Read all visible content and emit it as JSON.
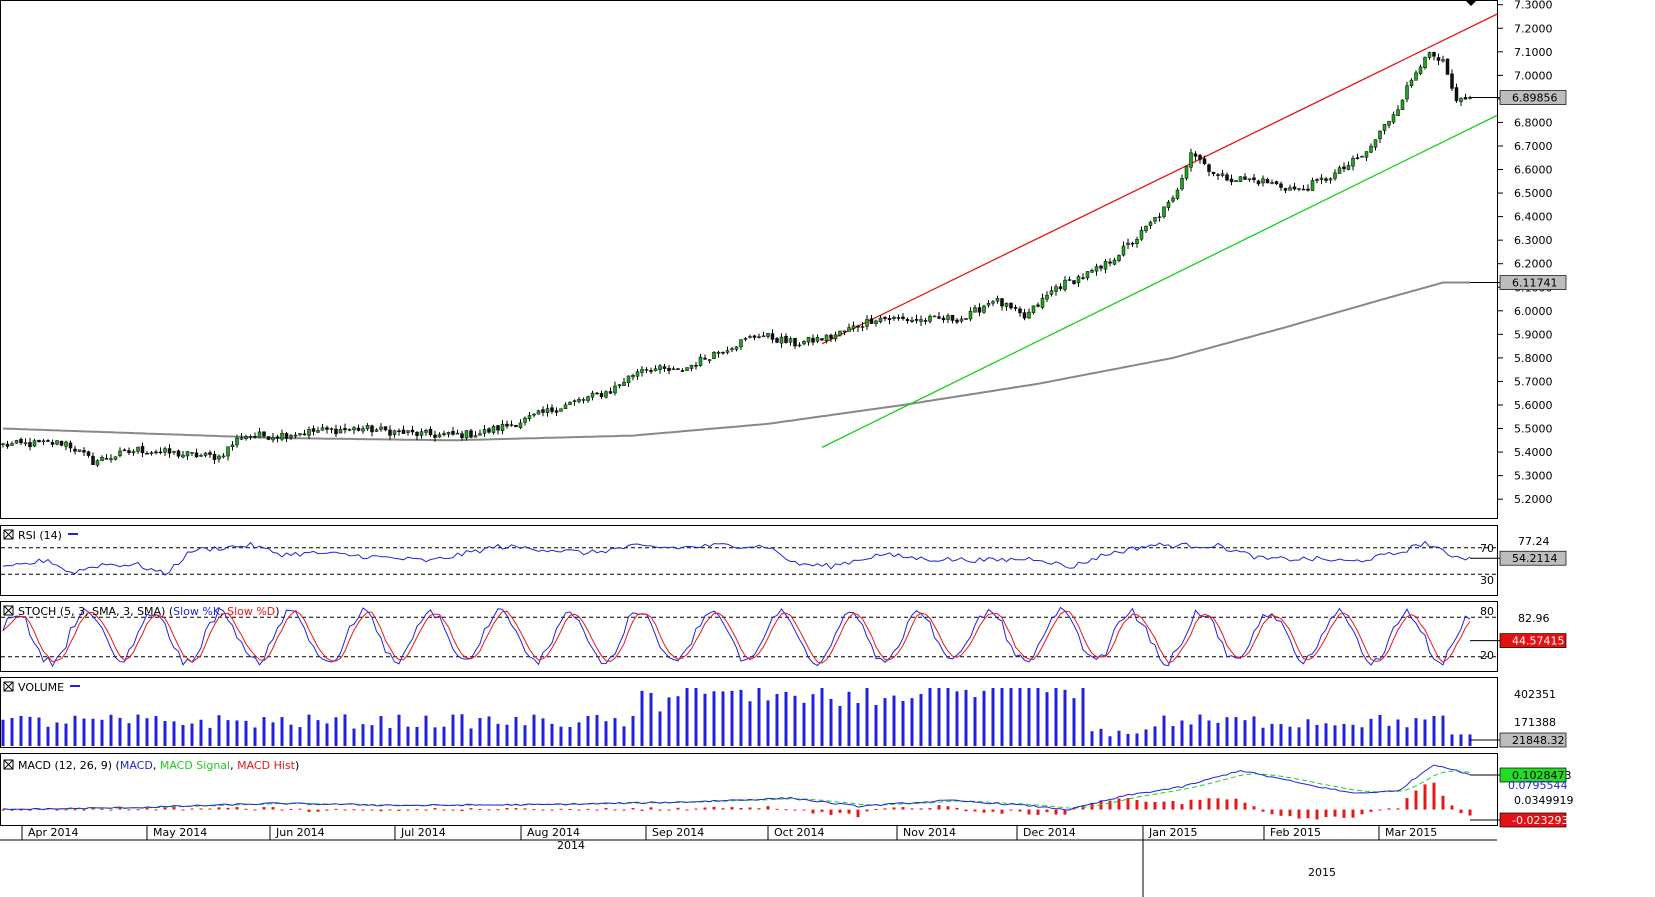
{
  "chart_data": {
    "type": "candlestick",
    "title": "",
    "x_axis": {
      "month_labels": [
        "Apr 2014",
        "May 2014",
        "Jun 2014",
        "Jul 2014",
        "Aug 2014",
        "Sep 2014",
        "Oct 2014",
        "Nov 2014",
        "Dec 2014",
        "Jan 2015",
        "Feb 2015",
        "Mar 2015"
      ],
      "year_labels": [
        "2014",
        "2015"
      ]
    },
    "price_panel": {
      "ylim": [
        5.12,
        7.32
      ],
      "y_ticks": [
        "5.2000",
        "5.3000",
        "5.4000",
        "5.5000",
        "5.6000",
        "5.7000",
        "5.8000",
        "5.9000",
        "6.0000",
        "6.1000",
        "6.2000",
        "6.3000",
        "6.4000",
        "6.5000",
        "6.6000",
        "6.7000",
        "6.8000",
        "6.9000",
        "7.0000",
        "7.1000",
        "7.2000",
        "7.3000"
      ],
      "last_price_label": "6.89856",
      "ma_label": "6.11741",
      "close_anchors": [
        [
          0,
          5.43
        ],
        [
          14,
          5.44
        ],
        [
          20,
          5.36
        ],
        [
          30,
          5.41
        ],
        [
          40,
          5.39
        ],
        [
          48,
          5.38
        ],
        [
          53,
          5.47
        ],
        [
          60,
          5.47
        ],
        [
          70,
          5.49
        ],
        [
          80,
          5.5
        ],
        [
          90,
          5.48
        ],
        [
          98,
          5.47
        ],
        [
          106,
          5.48
        ],
        [
          115,
          5.53
        ],
        [
          125,
          5.6
        ],
        [
          135,
          5.66
        ],
        [
          142,
          5.76
        ],
        [
          150,
          5.74
        ],
        [
          158,
          5.82
        ],
        [
          168,
          5.9
        ],
        [
          176,
          5.86
        ],
        [
          184,
          5.89
        ],
        [
          194,
          5.97
        ],
        [
          204,
          5.96
        ],
        [
          214,
          5.97
        ],
        [
          220,
          6.05
        ],
        [
          227,
          5.97
        ],
        [
          234,
          6.1
        ],
        [
          244,
          6.18
        ],
        [
          252,
          6.31
        ],
        [
          260,
          6.47
        ],
        [
          264,
          6.68
        ],
        [
          270,
          6.57
        ],
        [
          280,
          6.55
        ],
        [
          288,
          6.51
        ],
        [
          296,
          6.58
        ],
        [
          303,
          6.67
        ],
        [
          310,
          6.87
        ],
        [
          316,
          7.09
        ],
        [
          320,
          7.05
        ],
        [
          323,
          6.88
        ],
        [
          326,
          6.9
        ]
      ],
      "moving_average_200": [
        [
          0,
          5.5
        ],
        [
          60,
          5.46
        ],
        [
          100,
          5.45
        ],
        [
          140,
          5.47
        ],
        [
          170,
          5.52
        ],
        [
          200,
          5.6
        ],
        [
          230,
          5.69
        ],
        [
          260,
          5.8
        ],
        [
          285,
          5.93
        ],
        [
          305,
          6.04
        ],
        [
          320,
          6.12
        ],
        [
          326,
          6.12
        ]
      ],
      "channel_upper": {
        "start": [
          182,
          5.86
        ],
        "end": [
          332,
          7.26
        ]
      },
      "channel_lower": {
        "start": [
          182,
          5.42
        ],
        "end": [
          332,
          6.83
        ]
      }
    },
    "rsi": {
      "label": "RSI (14)",
      "levels": [
        30,
        70
      ],
      "level_labels": [
        "70",
        "30"
      ],
      "current": "54.2114",
      "top_label": "77.24",
      "anchors": [
        [
          0,
          38
        ],
        [
          10,
          52
        ],
        [
          15,
          32
        ],
        [
          22,
          45
        ],
        [
          30,
          44
        ],
        [
          36,
          30
        ],
        [
          42,
          66
        ],
        [
          55,
          74
        ],
        [
          62,
          60
        ],
        [
          70,
          62
        ],
        [
          85,
          55
        ],
        [
          95,
          50
        ],
        [
          110,
          72
        ],
        [
          120,
          68
        ],
        [
          130,
          62
        ],
        [
          140,
          72
        ],
        [
          150,
          70
        ],
        [
          160,
          74
        ],
        [
          170,
          72
        ],
        [
          176,
          46
        ],
        [
          184,
          42
        ],
        [
          195,
          60
        ],
        [
          205,
          53
        ],
        [
          220,
          51
        ],
        [
          230,
          54
        ],
        [
          237,
          40
        ],
        [
          245,
          60
        ],
        [
          255,
          74
        ],
        [
          270,
          73
        ],
        [
          280,
          53
        ],
        [
          292,
          53
        ],
        [
          300,
          49
        ],
        [
          310,
          62
        ],
        [
          316,
          78
        ],
        [
          321,
          60
        ],
        [
          326,
          54
        ]
      ]
    },
    "stochastic": {
      "label": "STOCH (5, 3, SMA, 3, SMA)",
      "series": [
        "Slow %K",
        "Slow %D"
      ],
      "levels": [
        20,
        80
      ],
      "level_labels": [
        "80",
        "20"
      ],
      "current": "44.57415",
      "top_label": "82.96"
    },
    "volume": {
      "label": "VOLUME",
      "top_label": "402351",
      "mid_label": "171388",
      "current": "21848.32"
    },
    "macd": {
      "label": "MACD (12, 26, 9)",
      "series": [
        "MACD",
        "MACD Signal",
        "MACD Hist"
      ],
      "values": [
        "0.1028473",
        "0.0795544",
        "0.0349919",
        "-0.023293"
      ],
      "anchors": [
        [
          0,
          0.0
        ],
        [
          30,
          0.005
        ],
        [
          60,
          0.015
        ],
        [
          90,
          0.01
        ],
        [
          120,
          0.012
        ],
        [
          150,
          0.018
        ],
        [
          175,
          0.028
        ],
        [
          190,
          0.008
        ],
        [
          210,
          0.022
        ],
        [
          225,
          0.012
        ],
        [
          237,
          0.0
        ],
        [
          250,
          0.035
        ],
        [
          262,
          0.055
        ],
        [
          275,
          0.095
        ],
        [
          290,
          0.06
        ],
        [
          300,
          0.04
        ],
        [
          310,
          0.045
        ],
        [
          318,
          0.11
        ],
        [
          326,
          0.085
        ]
      ]
    }
  },
  "colors": {
    "up": "#1fa61f",
    "down": "#111111",
    "ma": "#888888",
    "channel_upper": "#e81818",
    "channel_lower": "#19d019",
    "indicator_blue": "#2222dd",
    "indicator_red": "#e81818",
    "signal_green": "#22cc22",
    "label_box_gray": "#bdbdbd",
    "label_box_red": "#e31111",
    "label_box_green": "#22dd22"
  }
}
